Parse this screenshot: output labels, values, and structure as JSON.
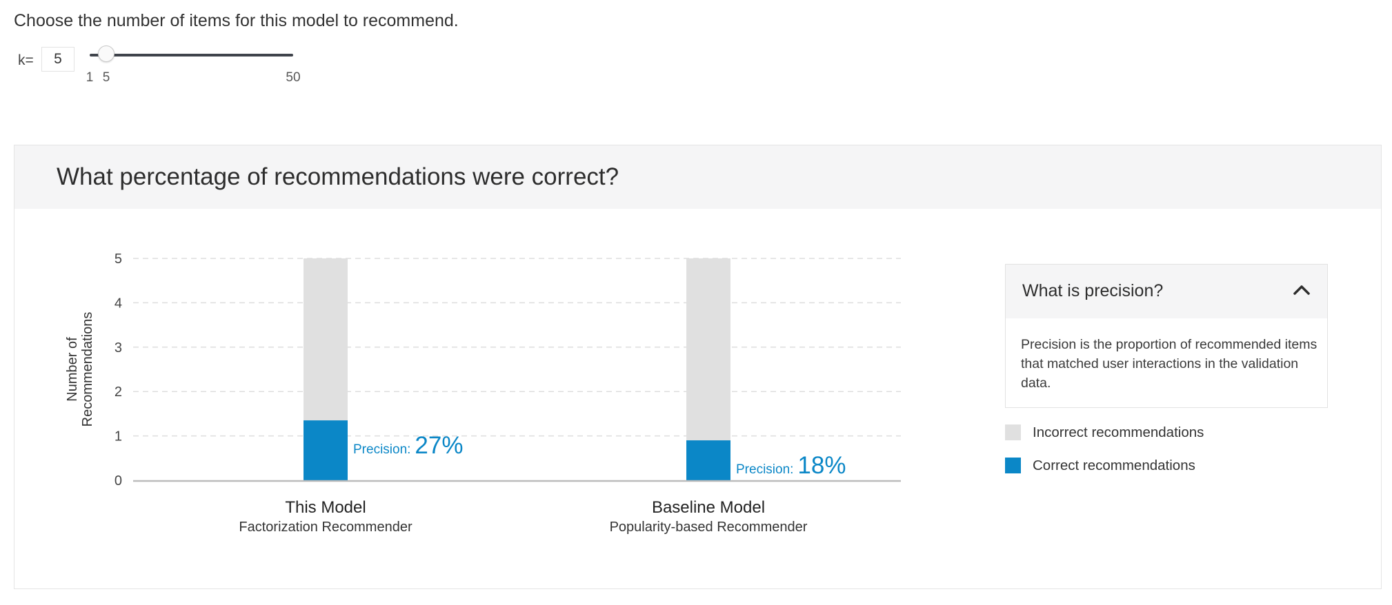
{
  "instruction": "Choose the number of items for this model to recommend.",
  "k_control": {
    "label": "k=",
    "value": "5",
    "slider": {
      "min": 1,
      "max": 50,
      "value": 5,
      "tick_labels": [
        "1",
        "5",
        "50"
      ]
    }
  },
  "card": {
    "title": "What percentage of recommendations were correct?"
  },
  "info": {
    "title": "What is precision?",
    "body": "Precision is the proportion of recommended items that matched user interactions in the validation data.",
    "toggle_icon": "chevron-up-icon"
  },
  "legend": {
    "items": [
      {
        "label": "Incorrect recommendations",
        "color": "#e0e0e0"
      },
      {
        "label": "Correct recommendations",
        "color": "#0b87c7"
      }
    ]
  },
  "colors": {
    "correct": "#0b87c7",
    "incorrect": "#e0e0e0",
    "grid": "#dddddd",
    "axis": "#bbbbbb"
  },
  "chart_data": {
    "type": "bar",
    "stacked": true,
    "title": "What percentage of recommendations were correct?",
    "ylabel": "Number of Recommendations",
    "ylim": [
      0,
      5
    ],
    "yticks": [
      0,
      1,
      2,
      3,
      4,
      5
    ],
    "grid": true,
    "legend_position": "right",
    "categories": [
      "This Model",
      "Baseline Model"
    ],
    "category_subtitles": [
      "Factorization Recommender",
      "Popularity-based Recommender"
    ],
    "series": [
      {
        "name": "Correct recommendations",
        "values": [
          1.35,
          0.9
        ]
      },
      {
        "name": "Incorrect recommendations",
        "values": [
          3.65,
          4.1
        ]
      }
    ],
    "annotations": [
      {
        "label": "Precision:",
        "value": "27%"
      },
      {
        "label": "Precision:",
        "value": "18%"
      }
    ]
  }
}
